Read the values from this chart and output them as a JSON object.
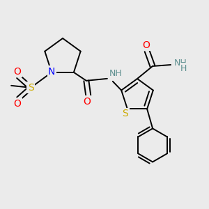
{
  "background_color": "#ebebeb",
  "atom_colors": {
    "C": "#000000",
    "N": "#0000ff",
    "O": "#ff0000",
    "S": "#ccaa00",
    "H": "#5f9090"
  },
  "bond_color": "#000000",
  "figsize": [
    3.0,
    3.0
  ],
  "dpi": 100,
  "lw": 1.4,
  "fs": 8.5
}
